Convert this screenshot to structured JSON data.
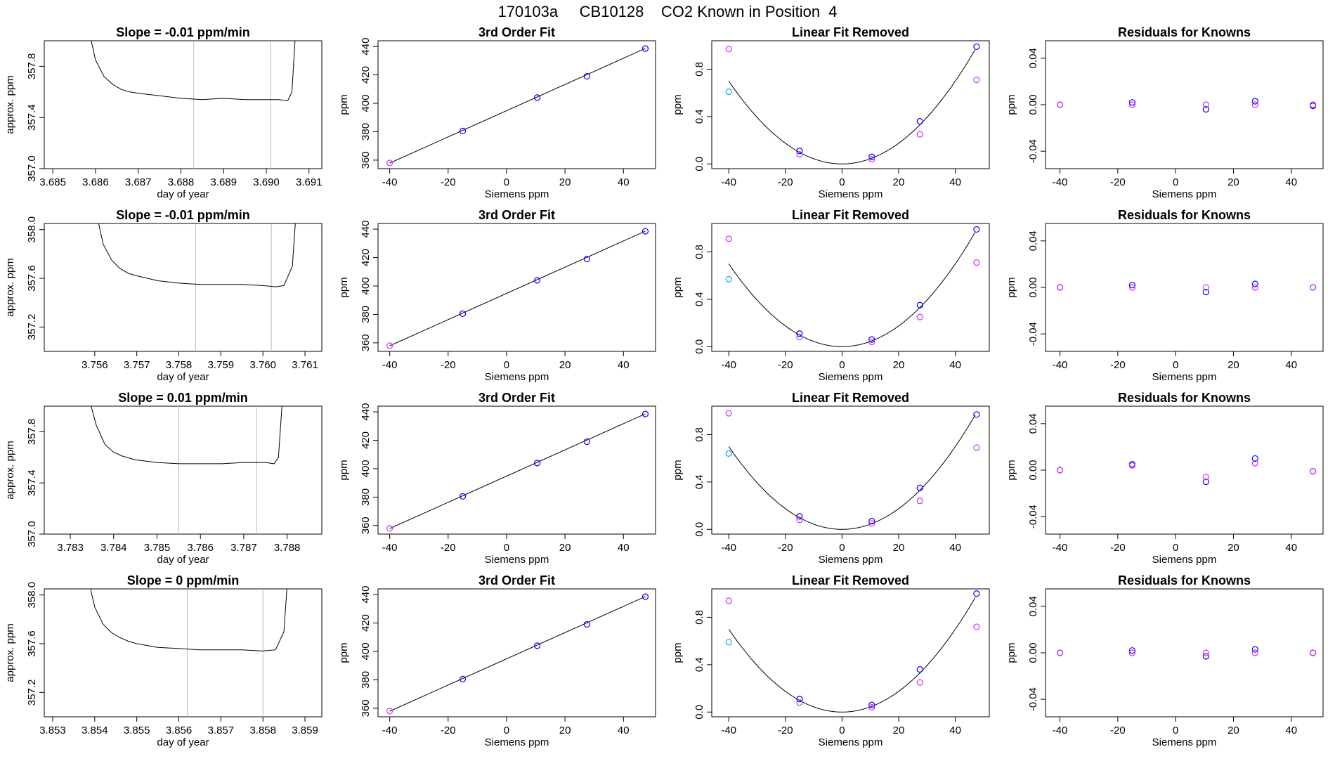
{
  "figure": {
    "title": "170103a     CB10128    CO2 Known in Position  4"
  },
  "chart_data": [
    {
      "type": "line",
      "row": 1,
      "title": "Slope =  -0.01  ppm/min",
      "xlabel": "day of year",
      "ylabel": "approx. ppm",
      "xlim": [
        3.6848,
        3.6913
      ],
      "ylim": [
        357.0,
        358.0
      ],
      "xticks": [
        "3.685",
        "3.686",
        "3.687",
        "3.688",
        "3.689",
        "3.690",
        "3.691"
      ],
      "yticks": [
        "357.0",
        "357.4",
        "357.8"
      ],
      "vlines": [
        3.6883,
        3.6901
      ],
      "x": [
        3.6858,
        3.686,
        3.6862,
        3.6864,
        3.6866,
        3.6868,
        3.687,
        3.6875,
        3.688,
        3.6885,
        3.689,
        3.6895,
        3.69,
        3.6903,
        3.6905,
        3.6906,
        3.6907
      ],
      "y": [
        358.15,
        357.85,
        357.72,
        357.66,
        357.62,
        357.6,
        357.59,
        357.57,
        357.55,
        357.54,
        357.55,
        357.54,
        357.54,
        357.54,
        357.53,
        357.6,
        358.15
      ]
    },
    {
      "type": "scatter",
      "row": 1,
      "title": "3rd Order Fit",
      "xlabel": "Siemens ppm",
      "ylabel": "ppm",
      "xlim": [
        -44,
        51
      ],
      "ylim": [
        354,
        444
      ],
      "xticks": [
        "-40",
        "-20",
        "0",
        "20",
        "40"
      ],
      "yticks": [
        "360",
        "380",
        "400",
        "420",
        "440"
      ],
      "series": [
        {
          "color": "#0000ff",
          "x": [
            -15,
            10.5,
            27.5,
            47.5
          ],
          "y": [
            380.5,
            404,
            419,
            438.5
          ]
        },
        {
          "color": "#cc33ff",
          "x": [
            -40
          ],
          "y": [
            358
          ]
        }
      ],
      "fit": {
        "x": [
          -40,
          47.5
        ],
        "y": [
          357.9,
          438.6
        ]
      }
    },
    {
      "type": "scatter",
      "row": 1,
      "title": "Linear Fit Removed",
      "xlabel": "Siemens ppm",
      "ylabel": "ppm",
      "xlim": [
        -46,
        52
      ],
      "ylim": [
        -0.04,
        1.04
      ],
      "xticks": [
        "-40",
        "-20",
        "0",
        "20",
        "40"
      ],
      "yticks": [
        "0.0",
        "0.4",
        "0.8"
      ],
      "series": [
        {
          "color": "#0000ff",
          "x": [
            -15,
            10.5,
            27.5,
            47.5
          ],
          "y": [
            0.11,
            0.06,
            0.36,
            0.99
          ]
        },
        {
          "color": "#cc33ff",
          "x": [
            -40,
            -15,
            10.5,
            27.5,
            47.5
          ],
          "y": [
            0.97,
            0.08,
            0.04,
            0.25,
            0.71
          ]
        },
        {
          "color": "#00aaff",
          "x": [
            -40
          ],
          "y": [
            0.61
          ]
        }
      ],
      "fit_coeff": 0.000437
    },
    {
      "type": "scatter",
      "row": 1,
      "title": "Residuals for Knowns",
      "xlabel": "Siemens ppm",
      "ylabel": "ppm",
      "xlim": [
        -45,
        51
      ],
      "ylim": [
        -0.055,
        0.055
      ],
      "xticks": [
        "-40",
        "-20",
        "0",
        "20",
        "40"
      ],
      "yticks": [
        "-0.04",
        "0.00",
        "0.04"
      ],
      "series": [
        {
          "color": "#0000ff",
          "x": [
            -40,
            -15,
            10.5,
            27.5,
            47.5
          ],
          "y": [
            0.0,
            0.002,
            -0.004,
            0.003,
            -0.001
          ]
        },
        {
          "color": "#cc33ff",
          "x": [
            -40,
            -15,
            10.5,
            27.5,
            47.5
          ],
          "y": [
            0.0,
            0.0,
            0.0,
            0.0,
            0.0
          ]
        }
      ]
    },
    {
      "type": "line",
      "row": 2,
      "title": "Slope =  -0.01  ppm/min",
      "xlabel": "day of year",
      "ylabel": "approx. ppm",
      "xlim": [
        3.7548,
        3.7614
      ],
      "ylim": [
        357.0,
        358.05
      ],
      "xticks": [
        "3.756",
        "3.757",
        "3.758",
        "3.759",
        "3.760",
        "3.761"
      ],
      "yticks": [
        "357.2",
        "357.6",
        "358.0"
      ],
      "vlines": [
        3.7584,
        3.7602
      ],
      "x": [
        3.756,
        3.7562,
        3.7564,
        3.7566,
        3.7568,
        3.757,
        3.7575,
        3.758,
        3.7585,
        3.759,
        3.7595,
        3.76,
        3.7603,
        3.7605,
        3.7607,
        3.7608
      ],
      "y": [
        358.2,
        357.88,
        357.75,
        357.68,
        357.64,
        357.62,
        357.58,
        357.56,
        357.55,
        357.55,
        357.55,
        357.54,
        357.53,
        357.54,
        357.7,
        358.2
      ]
    },
    {
      "type": "scatter",
      "row": 2,
      "title": "3rd Order Fit",
      "xlabel": "Siemens ppm",
      "ylabel": "ppm",
      "xlim": [
        -44,
        51
      ],
      "ylim": [
        354,
        444
      ],
      "xticks": [
        "-40",
        "-20",
        "0",
        "20",
        "40"
      ],
      "yticks": [
        "360",
        "380",
        "400",
        "420",
        "440"
      ],
      "series": [
        {
          "color": "#0000ff",
          "x": [
            -15,
            10.5,
            27.5,
            47.5
          ],
          "y": [
            380.5,
            404,
            419,
            438.5
          ]
        },
        {
          "color": "#cc33ff",
          "x": [
            -40
          ],
          "y": [
            358
          ]
        }
      ],
      "fit": {
        "x": [
          -40,
          47.5
        ],
        "y": [
          357.9,
          438.6
        ]
      }
    },
    {
      "type": "scatter",
      "row": 2,
      "title": "Linear Fit Removed",
      "xlabel": "Siemens ppm",
      "ylabel": "ppm",
      "xlim": [
        -46,
        52
      ],
      "ylim": [
        -0.04,
        1.04
      ],
      "xticks": [
        "-40",
        "-20",
        "0",
        "20",
        "40"
      ],
      "yticks": [
        "0.0",
        "0.4",
        "0.8"
      ],
      "series": [
        {
          "color": "#0000ff",
          "x": [
            -15,
            10.5,
            27.5,
            47.5
          ],
          "y": [
            0.11,
            0.06,
            0.35,
            0.99
          ]
        },
        {
          "color": "#cc33ff",
          "x": [
            -40,
            -15,
            10.5,
            27.5,
            47.5
          ],
          "y": [
            0.91,
            0.08,
            0.04,
            0.25,
            0.71
          ]
        },
        {
          "color": "#00aaff",
          "x": [
            -40
          ],
          "y": [
            0.57
          ]
        }
      ],
      "fit_coeff": 0.000437
    },
    {
      "type": "scatter",
      "row": 2,
      "title": "Residuals for Knowns",
      "xlabel": "Siemens ppm",
      "ylabel": "ppm",
      "xlim": [
        -45,
        51
      ],
      "ylim": [
        -0.055,
        0.055
      ],
      "xticks": [
        "-40",
        "-20",
        "0",
        "20",
        "40"
      ],
      "yticks": [
        "-0.04",
        "0.00",
        "0.04"
      ],
      "series": [
        {
          "color": "#0000ff",
          "x": [
            -40,
            -15,
            10.5,
            27.5,
            47.5
          ],
          "y": [
            0.0,
            0.002,
            -0.004,
            0.003,
            0.0
          ]
        },
        {
          "color": "#cc33ff",
          "x": [
            -40,
            -15,
            10.5,
            27.5,
            47.5
          ],
          "y": [
            0.0,
            0.0,
            0.0,
            0.0,
            0.0
          ]
        }
      ]
    },
    {
      "type": "line",
      "row": 3,
      "title": "Slope =  0.01  ppm/min",
      "xlabel": "day of year",
      "ylabel": "approx. ppm",
      "xlim": [
        3.7824,
        3.7888
      ],
      "ylim": [
        357.0,
        358.0
      ],
      "xticks": [
        "3.783",
        "3.784",
        "3.785",
        "3.786",
        "3.787",
        "3.788"
      ],
      "yticks": [
        "357.0",
        "357.4",
        "357.8"
      ],
      "vlines": [
        3.7855,
        3.7873
      ],
      "x": [
        3.7834,
        3.7836,
        3.7838,
        3.784,
        3.7842,
        3.7845,
        3.785,
        3.7855,
        3.786,
        3.7865,
        3.787,
        3.7875,
        3.7877,
        3.7878,
        3.7879
      ],
      "y": [
        358.1,
        357.85,
        357.7,
        357.64,
        357.61,
        357.58,
        357.56,
        357.55,
        357.55,
        357.55,
        357.56,
        357.56,
        357.55,
        357.6,
        358.1
      ]
    },
    {
      "type": "scatter",
      "row": 3,
      "title": "3rd Order Fit",
      "xlabel": "Siemens ppm",
      "ylabel": "ppm",
      "xlim": [
        -44,
        51
      ],
      "ylim": [
        354,
        444
      ],
      "xticks": [
        "-40",
        "-20",
        "0",
        "20",
        "40"
      ],
      "yticks": [
        "360",
        "380",
        "400",
        "420",
        "440"
      ],
      "series": [
        {
          "color": "#0000ff",
          "x": [
            -15,
            10.5,
            27.5,
            47.5
          ],
          "y": [
            380.5,
            404,
            419,
            438.5
          ]
        },
        {
          "color": "#cc33ff",
          "x": [
            -40
          ],
          "y": [
            358
          ]
        }
      ],
      "fit": {
        "x": [
          -40,
          47.5
        ],
        "y": [
          357.9,
          438.6
        ]
      }
    },
    {
      "type": "scatter",
      "row": 3,
      "title": "Linear Fit Removed",
      "xlabel": "Siemens ppm",
      "ylabel": "ppm",
      "xlim": [
        -46,
        52
      ],
      "ylim": [
        -0.04,
        1.04
      ],
      "xticks": [
        "-40",
        "-20",
        "0",
        "20",
        "40"
      ],
      "yticks": [
        "0.0",
        "0.4",
        "0.8"
      ],
      "series": [
        {
          "color": "#0000ff",
          "x": [
            -15,
            10.5,
            27.5,
            47.5
          ],
          "y": [
            0.11,
            0.07,
            0.35,
            0.97
          ]
        },
        {
          "color": "#cc33ff",
          "x": [
            -40,
            -15,
            10.5,
            27.5,
            47.5
          ],
          "y": [
            0.98,
            0.08,
            0.05,
            0.24,
            0.69
          ]
        },
        {
          "color": "#00aaff",
          "x": [
            -40
          ],
          "y": [
            0.64
          ]
        }
      ],
      "fit_coeff": 0.000437
    },
    {
      "type": "scatter",
      "row": 3,
      "title": "Residuals for Knowns",
      "xlabel": "Siemens ppm",
      "ylabel": "ppm",
      "xlim": [
        -45,
        51
      ],
      "ylim": [
        -0.055,
        0.055
      ],
      "xticks": [
        "-40",
        "-20",
        "0",
        "20",
        "40"
      ],
      "yticks": [
        "-0.04",
        "0.00",
        "0.04"
      ],
      "series": [
        {
          "color": "#0000ff",
          "x": [
            -40,
            -15,
            10.5,
            27.5,
            47.5
          ],
          "y": [
            0.0,
            0.005,
            -0.01,
            0.01,
            -0.001
          ]
        },
        {
          "color": "#cc33ff",
          "x": [
            -40,
            -15,
            10.5,
            27.5,
            47.5
          ],
          "y": [
            0.0,
            0.004,
            -0.006,
            0.006,
            -0.001
          ]
        }
      ]
    },
    {
      "type": "line",
      "row": 4,
      "title": "Slope =  0  ppm/min",
      "xlabel": "day of year",
      "ylabel": "approx. ppm",
      "xlim": [
        3.8528,
        3.8594
      ],
      "ylim": [
        357.0,
        358.05
      ],
      "xticks": [
        "3.853",
        "3.854",
        "3.855",
        "3.856",
        "3.857",
        "3.858",
        "3.859"
      ],
      "yticks": [
        "357.2",
        "357.6",
        "358.0"
      ],
      "vlines": [
        3.8562,
        3.858
      ],
      "x": [
        3.8538,
        3.854,
        3.8542,
        3.8544,
        3.8546,
        3.8548,
        3.855,
        3.8555,
        3.856,
        3.8565,
        3.857,
        3.8575,
        3.858,
        3.8583,
        3.8585,
        3.8586
      ],
      "y": [
        358.2,
        357.9,
        357.76,
        357.69,
        357.65,
        357.62,
        357.6,
        357.57,
        357.56,
        357.55,
        357.55,
        357.55,
        357.54,
        357.55,
        357.7,
        358.2
      ]
    },
    {
      "type": "scatter",
      "row": 4,
      "title": "3rd Order Fit",
      "xlabel": "Siemens ppm",
      "ylabel": "ppm",
      "xlim": [
        -44,
        51
      ],
      "ylim": [
        354,
        444
      ],
      "xticks": [
        "-40",
        "-20",
        "0",
        "20",
        "40"
      ],
      "yticks": [
        "360",
        "380",
        "400",
        "420",
        "440"
      ],
      "series": [
        {
          "color": "#0000ff",
          "x": [
            -15,
            10.5,
            27.5,
            47.5
          ],
          "y": [
            380.5,
            404,
            419,
            438.5
          ]
        },
        {
          "color": "#cc33ff",
          "x": [
            -40
          ],
          "y": [
            358
          ]
        }
      ],
      "fit": {
        "x": [
          -40,
          47.5
        ],
        "y": [
          357.9,
          438.6
        ]
      }
    },
    {
      "type": "scatter",
      "row": 4,
      "title": "Linear Fit Removed",
      "xlabel": "Siemens ppm",
      "ylabel": "ppm",
      "xlim": [
        -46,
        52
      ],
      "ylim": [
        -0.04,
        1.04
      ],
      "xticks": [
        "-40",
        "-20",
        "0",
        "20",
        "40"
      ],
      "yticks": [
        "0.0",
        "0.4",
        "0.8"
      ],
      "series": [
        {
          "color": "#0000ff",
          "x": [
            -15,
            10.5,
            27.5,
            47.5
          ],
          "y": [
            0.11,
            0.06,
            0.36,
            1.0
          ]
        },
        {
          "color": "#cc33ff",
          "x": [
            -40,
            -15,
            10.5,
            27.5,
            47.5
          ],
          "y": [
            0.94,
            0.08,
            0.04,
            0.25,
            0.72
          ]
        },
        {
          "color": "#00aaff",
          "x": [
            -40
          ],
          "y": [
            0.59
          ]
        }
      ],
      "fit_coeff": 0.000437
    },
    {
      "type": "scatter",
      "row": 4,
      "title": "Residuals for Knowns",
      "xlabel": "Siemens ppm",
      "ylabel": "ppm",
      "xlim": [
        -45,
        51
      ],
      "ylim": [
        -0.055,
        0.055
      ],
      "xticks": [
        "-40",
        "-20",
        "0",
        "20",
        "40"
      ],
      "yticks": [
        "-0.04",
        "0.00",
        "0.04"
      ],
      "series": [
        {
          "color": "#0000ff",
          "x": [
            -40,
            -15,
            10.5,
            27.5,
            47.5
          ],
          "y": [
            0.0,
            0.002,
            -0.003,
            0.003,
            0.0
          ]
        },
        {
          "color": "#cc33ff",
          "x": [
            -40,
            -15,
            10.5,
            27.5,
            47.5
          ],
          "y": [
            0.0,
            0.0,
            0.0,
            0.0,
            0.0
          ]
        }
      ]
    }
  ]
}
